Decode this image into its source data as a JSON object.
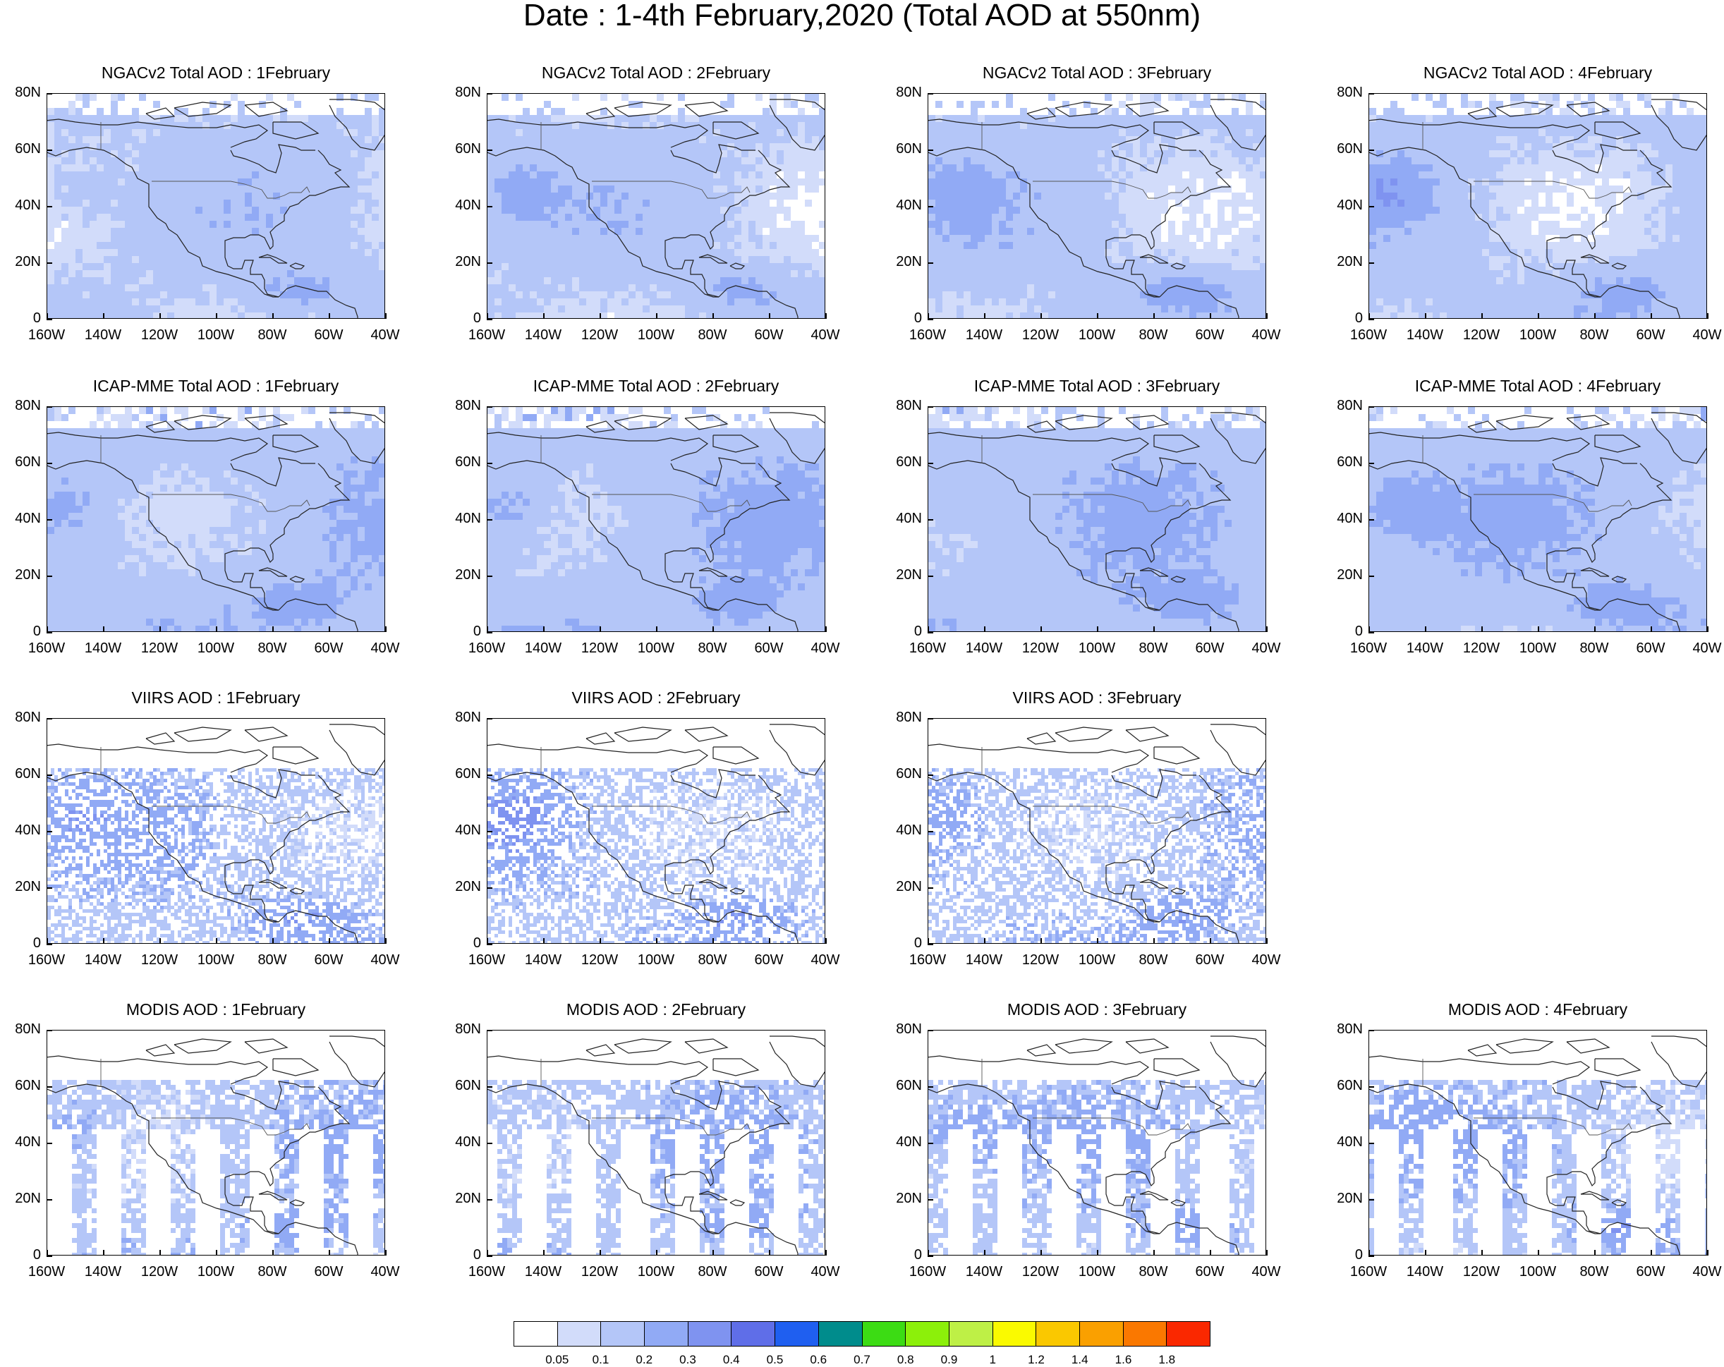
{
  "title": "Date : 1-4th February,2020 (Total AOD at 550nm)",
  "lat_labels": [
    "80N",
    "60N",
    "40N",
    "20N",
    "0"
  ],
  "lon_labels": [
    "160W",
    "140W",
    "120W",
    "100W",
    "80W",
    "60W",
    "40W"
  ],
  "panels": [
    {
      "title": "NGACv2 Total AOD : 1February",
      "row": 0,
      "col": 0,
      "style": "model",
      "level": 0.35
    },
    {
      "title": "NGACv2 Total AOD : 2February",
      "row": 0,
      "col": 1,
      "style": "model",
      "level": 0.35
    },
    {
      "title": "NGACv2 Total AOD : 3February",
      "row": 0,
      "col": 2,
      "style": "model",
      "level": 0.45
    },
    {
      "title": "NGACv2 Total AOD : 4February",
      "row": 0,
      "col": 3,
      "style": "model",
      "level": 0.45
    },
    {
      "title": "ICAP-MME Total AOD : 1February",
      "row": 1,
      "col": 0,
      "style": "model",
      "level": 0.75
    },
    {
      "title": "ICAP-MME Total AOD : 2February",
      "row": 1,
      "col": 1,
      "style": "model",
      "level": 0.75
    },
    {
      "title": "ICAP-MME Total AOD : 3February",
      "row": 1,
      "col": 2,
      "style": "model",
      "level": 0.75
    },
    {
      "title": "ICAP-MME Total AOD : 4February",
      "row": 1,
      "col": 3,
      "style": "model",
      "level": 0.75
    },
    {
      "title": "VIIRS AOD : 1February",
      "row": 2,
      "col": 0,
      "style": "speckle",
      "level": 0.6
    },
    {
      "title": "VIIRS AOD : 2February",
      "row": 2,
      "col": 1,
      "style": "speckle",
      "level": 0.6
    },
    {
      "title": "VIIRS AOD : 3February",
      "row": 2,
      "col": 2,
      "style": "speckle",
      "level": 0.6
    },
    {
      "title": "MODIS AOD : 1February",
      "row": 3,
      "col": 0,
      "style": "swath",
      "level": 0.6
    },
    {
      "title": "MODIS AOD : 2February",
      "row": 3,
      "col": 1,
      "style": "swath",
      "level": 0.6
    },
    {
      "title": "MODIS AOD : 3February",
      "row": 3,
      "col": 2,
      "style": "swath",
      "level": 0.6
    },
    {
      "title": "MODIS AOD : 4February",
      "row": 3,
      "col": 3,
      "style": "swath",
      "level": 0.6
    }
  ],
  "colorbar": {
    "colors": [
      "#ffffff",
      "#d2dcfa",
      "#b4c6f8",
      "#91aaf5",
      "#7f93f0",
      "#5f6ee8",
      "#1f5ff0",
      "#008c8c",
      "#3cdc14",
      "#8cf00a",
      "#bef046",
      "#fafa00",
      "#fac800",
      "#faa000",
      "#fa7800",
      "#fa2800"
    ],
    "labels": [
      "0.05",
      "0.1",
      "0.2",
      "0.3",
      "0.4",
      "0.5",
      "0.6",
      "0.7",
      "0.8",
      "0.9",
      "1",
      "1.2",
      "1.4",
      "1.6",
      "1.8"
    ]
  }
}
